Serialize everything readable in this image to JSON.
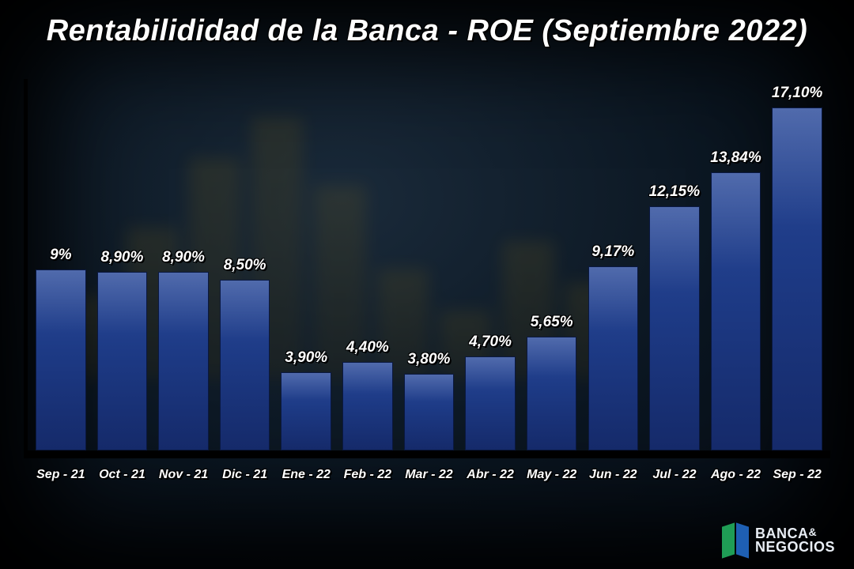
{
  "title": "Rentabilididad de la Banca - ROE (Septiembre 2022)",
  "chart": {
    "type": "bar",
    "y_max": 18.5,
    "y_min": 0,
    "bar_fill_top": "#2a4a9a",
    "bar_fill_mid": "#1d3a85",
    "bar_fill_bottom": "#152a6a",
    "bar_border": "#0a1840",
    "axis_color": "#000000",
    "background_gradient_center": "#1a2a3a",
    "background_gradient_edge": "#050a12",
    "title_color": "#ffffff",
    "title_fontsize": 38,
    "title_italic": true,
    "title_weight": 800,
    "label_color": "#ffffff",
    "label_fontsize": 19,
    "xlabel_fontsize": 16,
    "label_italic": true,
    "label_weight": 800,
    "text_outline": "#000000",
    "categories": [
      "Sep - 21",
      "Oct - 21",
      "Nov - 21",
      "Dic - 21",
      "Ene - 22",
      "Feb - 22",
      "Mar - 22",
      "Abr - 22",
      "May - 22",
      "Jun - 22",
      "Jul - 22",
      "Ago - 22",
      "Sep - 22"
    ],
    "values": [
      9.0,
      8.9,
      8.9,
      8.5,
      3.9,
      4.4,
      3.8,
      4.7,
      5.65,
      9.17,
      12.15,
      13.84,
      17.1
    ],
    "value_labels": [
      "9%",
      "8,90%",
      "8,90%",
      "8,50%",
      "3,90%",
      "4,40%",
      "3,80%",
      "4,70%",
      "5,65%",
      "9,17%",
      "12,15%",
      "13,84%",
      "17,10%"
    ]
  },
  "brand": {
    "line1": "BANCA",
    "amp": "&",
    "line2": "NEGOCIOS",
    "mark_green": "#1f9d55",
    "mark_blue": "#1e5fb3",
    "text_color": "#e9eef5"
  },
  "bg_decor_heights_pct": [
    30,
    55,
    80,
    95,
    70,
    40,
    25,
    50,
    35
  ]
}
